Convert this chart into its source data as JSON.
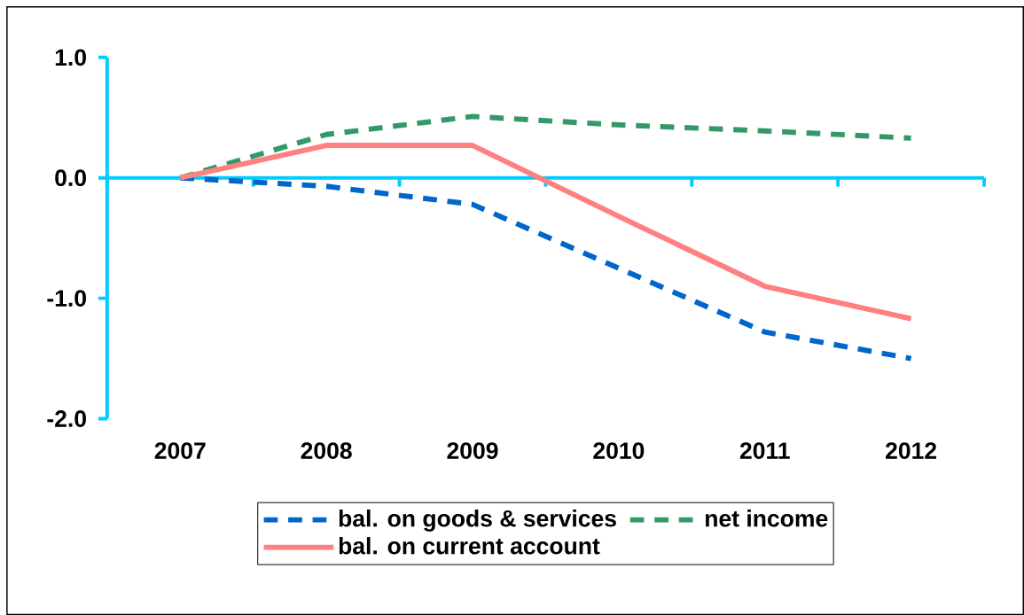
{
  "chart_data": {
    "type": "line",
    "categories": [
      "2007",
      "2008",
      "2009",
      "2010",
      "2011",
      "2012"
    ],
    "ylim": [
      -2,
      1
    ],
    "yticks": [
      {
        "value": -2,
        "label": "-2.0"
      },
      {
        "value": -1,
        "label": "-1.0"
      },
      {
        "value": 0,
        "label": "0.0"
      },
      {
        "value": 1,
        "label": "1.0"
      }
    ],
    "legend": "bottom",
    "marker": "none",
    "ref_lines": [
      {
        "axis": "y",
        "value": 0,
        "color": "#00ccff"
      }
    ],
    "series": [
      {
        "name": "bal. on goods & services",
        "color": "#0066cc",
        "line_style": "dashed",
        "values": [
          0,
          -0.07,
          -0.22,
          -0.75,
          -1.28,
          -1.5
        ]
      },
      {
        "name": "net income",
        "color": "#339966",
        "line_style": "dashed",
        "values": [
          0,
          0.36,
          0.51,
          0.44,
          0.39,
          0.33
        ]
      },
      {
        "name": "bal. on current account",
        "color": "#ff8080",
        "line_style": "solid",
        "values": [
          0,
          0.27,
          0.27,
          -0.32,
          -0.9,
          -1.17
        ]
      }
    ]
  }
}
